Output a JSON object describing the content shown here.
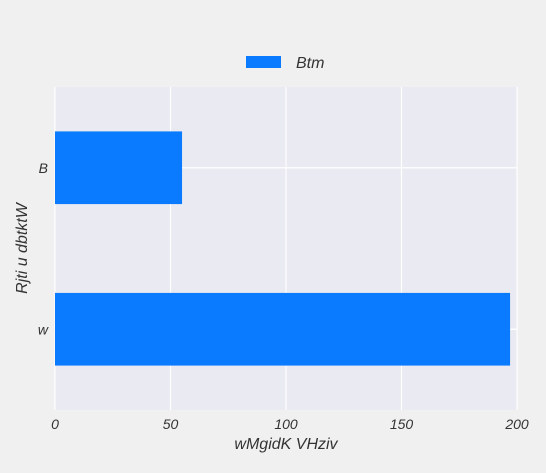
{
  "chart_data": {
    "type": "bar",
    "orientation": "horizontal",
    "categories": [
      "w",
      "B"
    ],
    "series": [
      {
        "name": "Btm",
        "values": [
          197,
          55
        ],
        "color": "#0a7aff"
      }
    ],
    "xlabel": "wMgidK VHziv",
    "ylabel": "Rjti u dbtktW",
    "xlim": [
      0,
      200
    ],
    "xticks": [
      0,
      50,
      100,
      150,
      200
    ],
    "grid": true,
    "legend_position": "top-center",
    "background": "#eaeaf2",
    "figure_background": "#f0f0f0"
  }
}
